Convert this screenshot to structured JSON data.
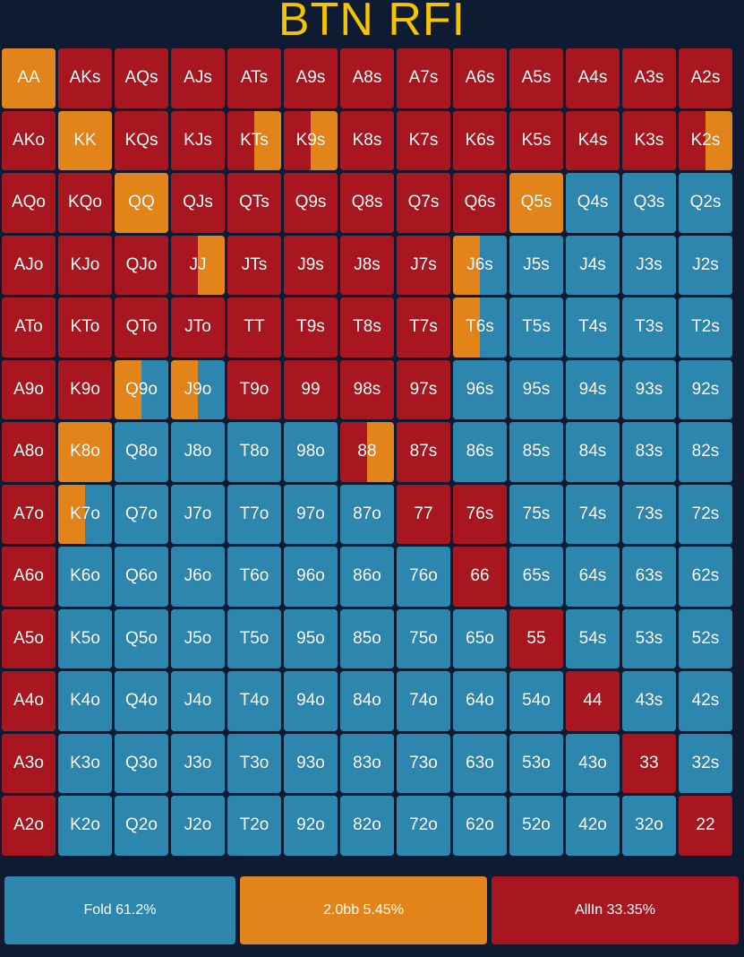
{
  "title": "BTN RFI",
  "colors": {
    "fold": "#2d86ad",
    "raise": "#e3841b",
    "allin": "#a8161f"
  },
  "legend": [
    {
      "action": "fold",
      "label": "Fold 61.2%"
    },
    {
      "action": "raise",
      "label": "2.0bb 5.45%"
    },
    {
      "action": "allin",
      "label": "AllIn 33.35%"
    }
  ],
  "grid": [
    [
      [
        "AA",
        {
          "raise": 1
        }
      ],
      [
        "AKs",
        {
          "allin": 1
        }
      ],
      [
        "AQs",
        {
          "allin": 1
        }
      ],
      [
        "AJs",
        {
          "allin": 1
        }
      ],
      [
        "ATs",
        {
          "allin": 1
        }
      ],
      [
        "A9s",
        {
          "allin": 1
        }
      ],
      [
        "A8s",
        {
          "allin": 1
        }
      ],
      [
        "A7s",
        {
          "allin": 1
        }
      ],
      [
        "A6s",
        {
          "allin": 1
        }
      ],
      [
        "A5s",
        {
          "allin": 1
        }
      ],
      [
        "A4s",
        {
          "allin": 1
        }
      ],
      [
        "A3s",
        {
          "allin": 1
        }
      ],
      [
        "A2s",
        {
          "allin": 1
        }
      ]
    ],
    [
      [
        "AKo",
        {
          "allin": 1
        }
      ],
      [
        "KK",
        {
          "raise": 1
        }
      ],
      [
        "KQs",
        {
          "allin": 1
        }
      ],
      [
        "KJs",
        {
          "allin": 1
        }
      ],
      [
        "KTs",
        {
          "allin": 0.5,
          "raise": 0.5
        }
      ],
      [
        "K9s",
        {
          "allin": 0.5,
          "raise": 0.5
        }
      ],
      [
        "K8s",
        {
          "allin": 1
        }
      ],
      [
        "K7s",
        {
          "allin": 1
        }
      ],
      [
        "K6s",
        {
          "allin": 1
        }
      ],
      [
        "K5s",
        {
          "allin": 1
        }
      ],
      [
        "K4s",
        {
          "allin": 1
        }
      ],
      [
        "K3s",
        {
          "allin": 1
        }
      ],
      [
        "K2s",
        {
          "allin": 0.5,
          "raise": 0.5
        }
      ]
    ],
    [
      [
        "AQo",
        {
          "allin": 1
        }
      ],
      [
        "KQo",
        {
          "allin": 1
        }
      ],
      [
        "QQ",
        {
          "raise": 1
        }
      ],
      [
        "QJs",
        {
          "allin": 1
        }
      ],
      [
        "QTs",
        {
          "allin": 1
        }
      ],
      [
        "Q9s",
        {
          "allin": 1
        }
      ],
      [
        "Q8s",
        {
          "allin": 1
        }
      ],
      [
        "Q7s",
        {
          "allin": 1
        }
      ],
      [
        "Q6s",
        {
          "allin": 1
        }
      ],
      [
        "Q5s",
        {
          "raise": 1
        }
      ],
      [
        "Q4s",
        {
          "fold": 1
        }
      ],
      [
        "Q3s",
        {
          "fold": 1
        }
      ],
      [
        "Q2s",
        {
          "fold": 1
        }
      ]
    ],
    [
      [
        "AJo",
        {
          "allin": 1
        }
      ],
      [
        "KJo",
        {
          "allin": 1
        }
      ],
      [
        "QJo",
        {
          "allin": 1
        }
      ],
      [
        "JJ",
        {
          "allin": 0.5,
          "raise": 0.5
        }
      ],
      [
        "JTs",
        {
          "allin": 1
        }
      ],
      [
        "J9s",
        {
          "allin": 1
        }
      ],
      [
        "J8s",
        {
          "allin": 1
        }
      ],
      [
        "J7s",
        {
          "allin": 1
        }
      ],
      [
        "J6s",
        {
          "raise": 0.5,
          "fold": 0.5
        }
      ],
      [
        "J5s",
        {
          "fold": 1
        }
      ],
      [
        "J4s",
        {
          "fold": 1
        }
      ],
      [
        "J3s",
        {
          "fold": 1
        }
      ],
      [
        "J2s",
        {
          "fold": 1
        }
      ]
    ],
    [
      [
        "ATo",
        {
          "allin": 1
        }
      ],
      [
        "KTo",
        {
          "allin": 1
        }
      ],
      [
        "QTo",
        {
          "allin": 1
        }
      ],
      [
        "JTo",
        {
          "allin": 1
        }
      ],
      [
        "TT",
        {
          "allin": 1
        }
      ],
      [
        "T9s",
        {
          "allin": 1
        }
      ],
      [
        "T8s",
        {
          "allin": 1
        }
      ],
      [
        "T7s",
        {
          "allin": 1
        }
      ],
      [
        "T6s",
        {
          "raise": 0.5,
          "fold": 0.5
        }
      ],
      [
        "T5s",
        {
          "fold": 1
        }
      ],
      [
        "T4s",
        {
          "fold": 1
        }
      ],
      [
        "T3s",
        {
          "fold": 1
        }
      ],
      [
        "T2s",
        {
          "fold": 1
        }
      ]
    ],
    [
      [
        "A9o",
        {
          "allin": 1
        }
      ],
      [
        "K9o",
        {
          "allin": 1
        }
      ],
      [
        "Q9o",
        {
          "raise": 0.5,
          "fold": 0.5
        }
      ],
      [
        "J9o",
        {
          "raise": 0.5,
          "fold": 0.5
        }
      ],
      [
        "T9o",
        {
          "allin": 1
        }
      ],
      [
        "99",
        {
          "allin": 1
        }
      ],
      [
        "98s",
        {
          "allin": 1
        }
      ],
      [
        "97s",
        {
          "allin": 1
        }
      ],
      [
        "96s",
        {
          "fold": 1
        }
      ],
      [
        "95s",
        {
          "fold": 1
        }
      ],
      [
        "94s",
        {
          "fold": 1
        }
      ],
      [
        "93s",
        {
          "fold": 1
        }
      ],
      [
        "92s",
        {
          "fold": 1
        }
      ]
    ],
    [
      [
        "A8o",
        {
          "allin": 1
        }
      ],
      [
        "K8o",
        {
          "raise": 1
        }
      ],
      [
        "Q8o",
        {
          "fold": 1
        }
      ],
      [
        "J8o",
        {
          "fold": 1
        }
      ],
      [
        "T8o",
        {
          "fold": 1
        }
      ],
      [
        "98o",
        {
          "fold": 1
        }
      ],
      [
        "88",
        {
          "allin": 0.5,
          "raise": 0.5
        }
      ],
      [
        "87s",
        {
          "allin": 1
        }
      ],
      [
        "86s",
        {
          "fold": 1
        }
      ],
      [
        "85s",
        {
          "fold": 1
        }
      ],
      [
        "84s",
        {
          "fold": 1
        }
      ],
      [
        "83s",
        {
          "fold": 1
        }
      ],
      [
        "82s",
        {
          "fold": 1
        }
      ]
    ],
    [
      [
        "A7o",
        {
          "allin": 1
        }
      ],
      [
        "K7o",
        {
          "raise": 0.5,
          "fold": 0.5
        }
      ],
      [
        "Q7o",
        {
          "fold": 1
        }
      ],
      [
        "J7o",
        {
          "fold": 1
        }
      ],
      [
        "T7o",
        {
          "fold": 1
        }
      ],
      [
        "97o",
        {
          "fold": 1
        }
      ],
      [
        "87o",
        {
          "fold": 1
        }
      ],
      [
        "77",
        {
          "allin": 1
        }
      ],
      [
        "76s",
        {
          "allin": 1
        }
      ],
      [
        "75s",
        {
          "fold": 1
        }
      ],
      [
        "74s",
        {
          "fold": 1
        }
      ],
      [
        "73s",
        {
          "fold": 1
        }
      ],
      [
        "72s",
        {
          "fold": 1
        }
      ]
    ],
    [
      [
        "A6o",
        {
          "allin": 1
        }
      ],
      [
        "K6o",
        {
          "fold": 1
        }
      ],
      [
        "Q6o",
        {
          "fold": 1
        }
      ],
      [
        "J6o",
        {
          "fold": 1
        }
      ],
      [
        "T6o",
        {
          "fold": 1
        }
      ],
      [
        "96o",
        {
          "fold": 1
        }
      ],
      [
        "86o",
        {
          "fold": 1
        }
      ],
      [
        "76o",
        {
          "fold": 1
        }
      ],
      [
        "66",
        {
          "allin": 1
        }
      ],
      [
        "65s",
        {
          "fold": 1
        }
      ],
      [
        "64s",
        {
          "fold": 1
        }
      ],
      [
        "63s",
        {
          "fold": 1
        }
      ],
      [
        "62s",
        {
          "fold": 1
        }
      ]
    ],
    [
      [
        "A5o",
        {
          "allin": 1
        }
      ],
      [
        "K5o",
        {
          "fold": 1
        }
      ],
      [
        "Q5o",
        {
          "fold": 1
        }
      ],
      [
        "J5o",
        {
          "fold": 1
        }
      ],
      [
        "T5o",
        {
          "fold": 1
        }
      ],
      [
        "95o",
        {
          "fold": 1
        }
      ],
      [
        "85o",
        {
          "fold": 1
        }
      ],
      [
        "75o",
        {
          "fold": 1
        }
      ],
      [
        "65o",
        {
          "fold": 1
        }
      ],
      [
        "55",
        {
          "allin": 1
        }
      ],
      [
        "54s",
        {
          "fold": 1
        }
      ],
      [
        "53s",
        {
          "fold": 1
        }
      ],
      [
        "52s",
        {
          "fold": 1
        }
      ]
    ],
    [
      [
        "A4o",
        {
          "allin": 1
        }
      ],
      [
        "K4o",
        {
          "fold": 1
        }
      ],
      [
        "Q4o",
        {
          "fold": 1
        }
      ],
      [
        "J4o",
        {
          "fold": 1
        }
      ],
      [
        "T4o",
        {
          "fold": 1
        }
      ],
      [
        "94o",
        {
          "fold": 1
        }
      ],
      [
        "84o",
        {
          "fold": 1
        }
      ],
      [
        "74o",
        {
          "fold": 1
        }
      ],
      [
        "64o",
        {
          "fold": 1
        }
      ],
      [
        "54o",
        {
          "fold": 1
        }
      ],
      [
        "44",
        {
          "allin": 1
        }
      ],
      [
        "43s",
        {
          "fold": 1
        }
      ],
      [
        "42s",
        {
          "fold": 1
        }
      ]
    ],
    [
      [
        "A3o",
        {
          "allin": 1
        }
      ],
      [
        "K3o",
        {
          "fold": 1
        }
      ],
      [
        "Q3o",
        {
          "fold": 1
        }
      ],
      [
        "J3o",
        {
          "fold": 1
        }
      ],
      [
        "T3o",
        {
          "fold": 1
        }
      ],
      [
        "93o",
        {
          "fold": 1
        }
      ],
      [
        "83o",
        {
          "fold": 1
        }
      ],
      [
        "73o",
        {
          "fold": 1
        }
      ],
      [
        "63o",
        {
          "fold": 1
        }
      ],
      [
        "53o",
        {
          "fold": 1
        }
      ],
      [
        "43o",
        {
          "fold": 1
        }
      ],
      [
        "33",
        {
          "allin": 1
        }
      ],
      [
        "32s",
        {
          "fold": 1
        }
      ]
    ],
    [
      [
        "A2o",
        {
          "allin": 1
        }
      ],
      [
        "K2o",
        {
          "fold": 1
        }
      ],
      [
        "Q2o",
        {
          "fold": 1
        }
      ],
      [
        "J2o",
        {
          "fold": 1
        }
      ],
      [
        "T2o",
        {
          "fold": 1
        }
      ],
      [
        "92o",
        {
          "fold": 1
        }
      ],
      [
        "82o",
        {
          "fold": 1
        }
      ],
      [
        "72o",
        {
          "fold": 1
        }
      ],
      [
        "62o",
        {
          "fold": 1
        }
      ],
      [
        "52o",
        {
          "fold": 1
        }
      ],
      [
        "42o",
        {
          "fold": 1
        }
      ],
      [
        "32o",
        {
          "fold": 1
        }
      ],
      [
        "22",
        {
          "allin": 1
        }
      ]
    ]
  ]
}
